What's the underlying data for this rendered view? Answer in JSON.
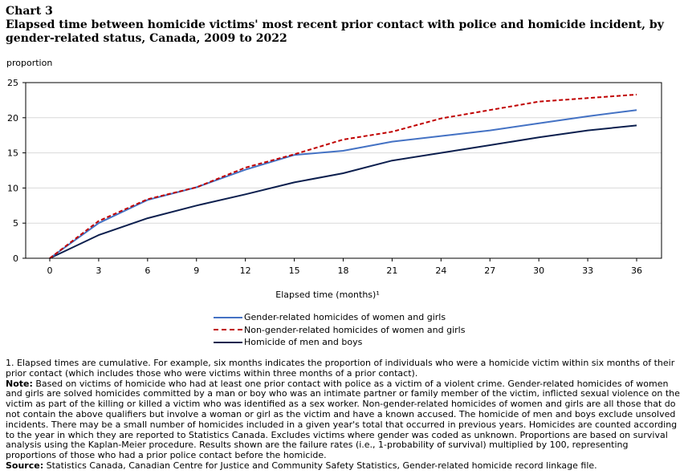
{
  "header": {
    "chart_number": "Chart 3",
    "title": "Elapsed time between homicide victims' most recent prior contact with police and homicide incident, by gender-related status, Canada, 2009 to 2022"
  },
  "chart_data": {
    "type": "line",
    "title": "Elapsed time between homicide victims' most recent prior contact with police and homicide incident, by gender-related status, Canada, 2009 to 2022",
    "ylabel": "proportion",
    "xlabel": "Elapsed time (months)¹",
    "x": [
      0,
      3,
      6,
      9,
      12,
      15,
      18,
      21,
      24,
      27,
      30,
      33,
      36
    ],
    "xticks": [
      "0",
      "3",
      "6",
      "9",
      "12",
      "15",
      "18",
      "21",
      "24",
      "27",
      "30",
      "33",
      "36"
    ],
    "yticks": [
      "0",
      "5",
      "10",
      "15",
      "20",
      "25"
    ],
    "ylim": [
      0,
      25
    ],
    "grid": "horizontal",
    "legend_position": "bottom",
    "series": [
      {
        "name": "Gender-related homicides of women and girls",
        "color": "#4472c4",
        "dash": "solid",
        "values": [
          0,
          5.0,
          8.3,
          10.1,
          12.6,
          14.7,
          15.3,
          16.6,
          17.4,
          18.2,
          19.2,
          20.2,
          21.1
        ]
      },
      {
        "name": "Non-gender-related homicides of women and girls",
        "color": "#c00000",
        "dash": "dashed",
        "values": [
          0,
          5.3,
          8.4,
          10.1,
          12.9,
          14.8,
          16.9,
          18.0,
          19.9,
          21.1,
          22.3,
          22.8,
          23.3
        ]
      },
      {
        "name": "Homicide of men and boys",
        "color": "#0c1f4e",
        "dash": "solid",
        "values": [
          0,
          3.3,
          5.7,
          7.5,
          9.1,
          10.8,
          12.1,
          13.9,
          15.0,
          16.1,
          17.2,
          18.2,
          18.9
        ]
      }
    ]
  },
  "notes": {
    "footnote1": "1. Elapsed times are cumulative. For example, six months indicates the proportion of individuals who were a homicide victim within six months of their prior contact (which includes those who were victims within three months of a prior contact).",
    "note_label": "Note:",
    "note_text": "Based on victims of homicide who had at least one prior contact with police as a victim of a violent crime. Gender-related homicides of women and girls are solved homicides committed by a man or boy who was an intimate partner or family member of the victim, inflicted sexual violence on the victim as part of the killing or killed a victim who was identified as a sex worker. Non-gender-related homicides of women and girls are all those that do not contain the above qualifiers but involve a woman or girl as the victim and have a known accused. The homicide of men and boys exclude unsolved incidents. There may be a small number of homicides included in a given year's total that occurred in previous years. Homicides are counted according to the year in which they are reported to Statistics Canada. Excludes victims where gender was coded as unknown. Proportions are based on survival analysis using the Kaplan-Meier procedure. Results shown are the failure rates (i.e., 1-probability of survival) multiplied by 100, representing proportions of those who had a prior police contact before the homicide.",
    "source_label": "Source:",
    "source_text": "Statistics Canada, Canadian Centre for Justice and Community Safety Statistics, Gender-related homicide record linkage file."
  }
}
